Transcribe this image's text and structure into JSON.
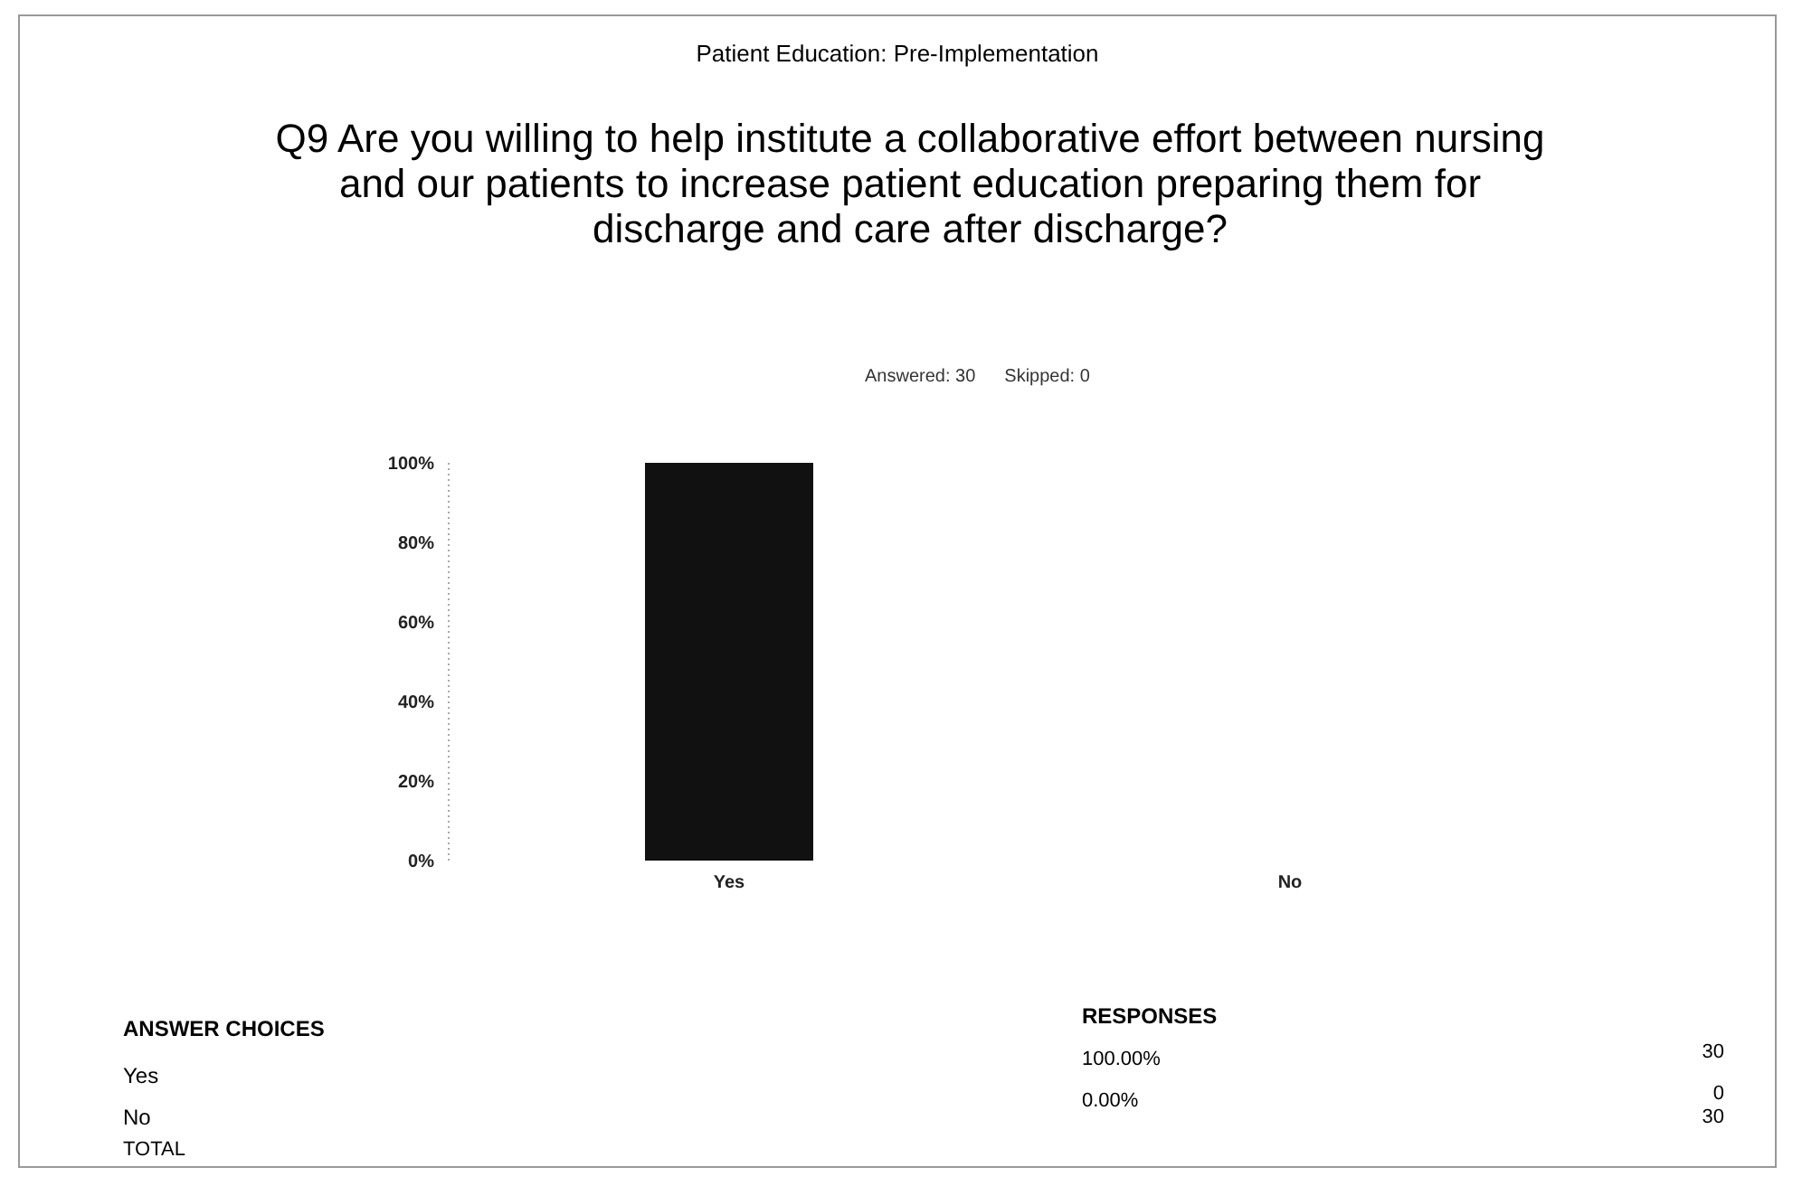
{
  "chart_data": {
    "type": "bar",
    "title": "Patient Education: Pre-Implementation",
    "subtitle": "Q9 Are you willing to help institute a collaborative effort between nursing and our patients to increase patient education preparing them for discharge and care after discharge?",
    "annotations": [
      "Answered: 30",
      "Skipped: 0",
      "ANSWER CHOICES",
      "RESPONSES",
      "TOTAL",
      "30",
      "0",
      "30",
      "100.00%",
      "0.00%"
    ],
    "categories": [
      "Yes",
      "No"
    ],
    "values": [
      100,
      0
    ],
    "color": "#111111",
    "ylim": [
      0,
      100
    ],
    "yticks": [
      {
        "value": 0,
        "label": "0%"
      },
      {
        "value": 20,
        "label": "20%"
      },
      {
        "value": 40,
        "label": "40%"
      },
      {
        "value": 60,
        "label": "60%"
      },
      {
        "value": 80,
        "label": "80%"
      },
      {
        "value": 100,
        "label": "100%"
      }
    ],
    "grid": false,
    "legend": false
  }
}
